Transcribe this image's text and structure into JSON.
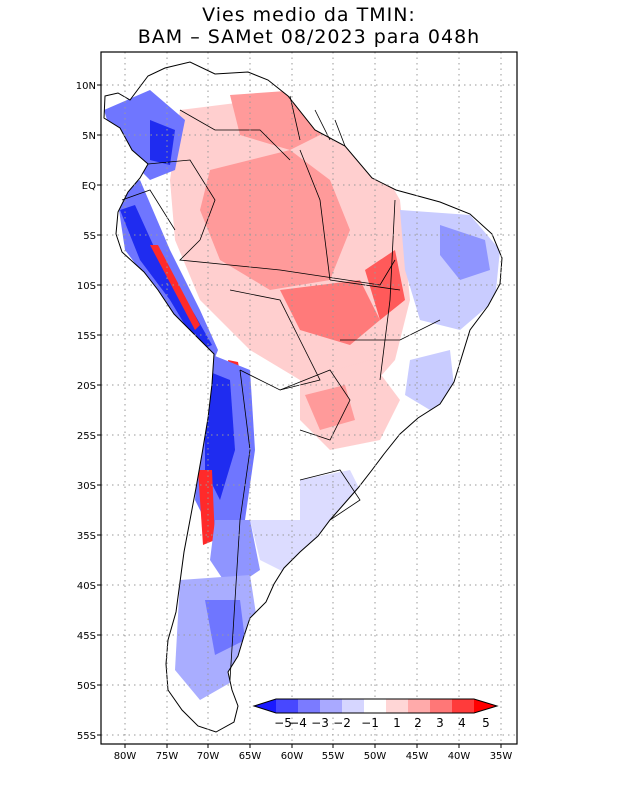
{
  "title": {
    "line1": "Vies medio da TMIN:",
    "line2": "BAM – SAMet 08/2023  para 048h"
  },
  "map": {
    "region": "South America",
    "lon_ticks": [
      "80W",
      "75W",
      "70W",
      "65W",
      "60W",
      "55W",
      "50W",
      "45W",
      "40W",
      "35W"
    ],
    "lat_ticks": [
      "10N",
      "5N",
      "EQ",
      "5S",
      "10S",
      "15S",
      "20S",
      "25S",
      "30S",
      "35S",
      "40S",
      "45S",
      "50S",
      "55S"
    ]
  },
  "colorbar": {
    "labels": [
      "−5",
      "−4",
      "−3",
      "−2",
      "−1",
      "1",
      "2",
      "3",
      "4",
      "5"
    ],
    "colors": [
      "#1a1aff",
      "#4848ff",
      "#7b7bff",
      "#a9a9ff",
      "#d6d6ff",
      "#ffffff",
      "#ffd6d6",
      "#ffaaaa",
      "#ff7777",
      "#ff3b3b",
      "#ff0000"
    ]
  },
  "palette": {
    "land": "#ffffff",
    "blue_strong": "#1f2cf0",
    "blue_mid": "#6f76ff",
    "blue_light": "#c9ccff",
    "red_strong": "#ff2a2a",
    "red_mid": "#ff7a7a",
    "red_light": "#ffcfcf"
  }
}
